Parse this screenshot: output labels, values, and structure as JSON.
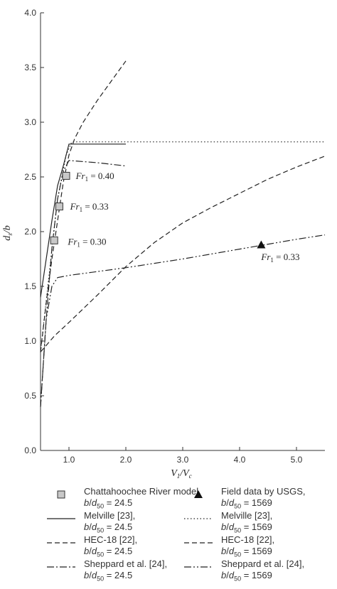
{
  "chart_data": {
    "type": "line",
    "xlabel_main": "V",
    "xlabel_sub1": "1",
    "xlabel_mid": "/V",
    "xlabel_sub2": "c",
    "ylabel_main": "d",
    "ylabel_sub": "s",
    "ylabel_tail": "/b",
    "xlim": [
      0.5,
      5.5
    ],
    "ylim": [
      0.0,
      4.0
    ],
    "xticks": [
      {
        "v": 1.0,
        "label": "1.0"
      },
      {
        "v": 2.0,
        "label": "2.0"
      },
      {
        "v": 3.0,
        "label": "3.0"
      },
      {
        "v": 4.0,
        "label": "4.0"
      },
      {
        "v": 5.0,
        "label": "5.0"
      }
    ],
    "yticks": [
      {
        "v": 0.0,
        "label": "0.0"
      },
      {
        "v": 0.5,
        "label": "0.5"
      },
      {
        "v": 1.0,
        "label": "1.0"
      },
      {
        "v": 1.5,
        "label": "1.5"
      },
      {
        "v": 2.0,
        "label": "2.0"
      },
      {
        "v": 2.5,
        "label": "2.5"
      },
      {
        "v": 3.0,
        "label": "3.0"
      },
      {
        "v": 3.5,
        "label": "3.5"
      },
      {
        "v": 4.0,
        "label": "4.0"
      }
    ],
    "series": [
      {
        "name": "Melville [23], b/d50 = 24.5",
        "style": "solid",
        "points": [
          [
            0.5,
            1.4
          ],
          [
            0.6,
            1.75
          ],
          [
            0.7,
            2.1
          ],
          [
            0.8,
            2.42
          ],
          [
            0.9,
            2.6
          ],
          [
            1.0,
            2.8
          ],
          [
            1.5,
            2.8
          ],
          [
            2.0,
            2.8
          ]
        ]
      },
      {
        "name": "Melville [23], b/d50 = 1569",
        "style": "dotted",
        "points": [
          [
            0.5,
            0.9
          ],
          [
            0.65,
            1.6
          ],
          [
            0.8,
            2.3
          ],
          [
            0.95,
            2.7
          ],
          [
            1.05,
            2.82
          ],
          [
            2.0,
            2.82
          ],
          [
            3.0,
            2.82
          ],
          [
            4.0,
            2.82
          ],
          [
            5.0,
            2.82
          ],
          [
            5.5,
            2.82
          ]
        ]
      },
      {
        "name": "HEC-18 [22], b/d50 = 24.5",
        "style": "dashed",
        "points": [
          [
            0.5,
            0.9
          ],
          [
            0.6,
            1.35
          ],
          [
            0.7,
            1.75
          ],
          [
            0.8,
            2.1
          ],
          [
            0.9,
            2.45
          ],
          [
            1.0,
            2.7
          ],
          [
            1.1,
            2.85
          ],
          [
            1.25,
            3.0
          ],
          [
            1.5,
            3.2
          ],
          [
            1.75,
            3.38
          ],
          [
            2.0,
            3.56
          ]
        ]
      },
      {
        "name": "HEC-18 [22], b/d50 = 1569",
        "style": "dashed",
        "points": [
          [
            0.5,
            0.9
          ],
          [
            0.75,
            1.05
          ],
          [
            1.0,
            1.17
          ],
          [
            1.5,
            1.42
          ],
          [
            2.0,
            1.68
          ],
          [
            2.5,
            1.9
          ],
          [
            3.0,
            2.08
          ],
          [
            3.5,
            2.22
          ],
          [
            4.0,
            2.35
          ],
          [
            4.5,
            2.48
          ],
          [
            5.0,
            2.59
          ],
          [
            5.5,
            2.69
          ]
        ]
      },
      {
        "name": "Sheppard et al. [24], b/d50 = 24.5",
        "style": "dashdot",
        "points": [
          [
            0.5,
            0.4
          ],
          [
            0.6,
            1.2
          ],
          [
            0.7,
            1.85
          ],
          [
            0.8,
            2.3
          ],
          [
            0.9,
            2.55
          ],
          [
            1.0,
            2.65
          ],
          [
            1.5,
            2.63
          ],
          [
            2.0,
            2.6
          ]
        ]
      },
      {
        "name": "Sheppard et al. [24], b/d50 = 1569",
        "style": "dashdotdot",
        "points": [
          [
            0.5,
            0.4
          ],
          [
            0.55,
            0.8
          ],
          [
            0.6,
            1.2
          ],
          [
            0.7,
            1.5
          ],
          [
            0.8,
            1.58
          ],
          [
            1.0,
            1.6
          ],
          [
            2.0,
            1.67
          ],
          [
            3.0,
            1.75
          ],
          [
            4.0,
            1.84
          ],
          [
            5.0,
            1.93
          ],
          [
            5.5,
            1.97
          ]
        ]
      }
    ],
    "markers": [
      {
        "name": "Chattahoochee River model",
        "shape": "square",
        "points": [
          [
            0.74,
            1.92
          ],
          [
            0.83,
            2.23
          ],
          [
            0.95,
            2.51
          ]
        ]
      },
      {
        "name": "Field data by USGS",
        "shape": "triangle",
        "points": [
          [
            4.38,
            1.88
          ]
        ]
      }
    ],
    "annotations": [
      {
        "prefix": "Fr",
        "sub": "1",
        "suffix": " = 0.40",
        "x": 1.12,
        "y": 2.48
      },
      {
        "prefix": "Fr",
        "sub": "1",
        "suffix": " = 0.33",
        "x": 1.02,
        "y": 2.2
      },
      {
        "prefix": "Fr",
        "sub": "1",
        "suffix": " = 0.30",
        "x": 0.98,
        "y": 1.88
      },
      {
        "prefix": "Fr",
        "sub": "1",
        "suffix": " = 0.33",
        "x": 4.38,
        "y": 1.74
      }
    ]
  },
  "legend": {
    "items": [
      {
        "id": "chatt",
        "sym": "square",
        "line1": "Chattahoochee River model,",
        "l2a": "b",
        "l2b": "/",
        "l2c": "d",
        "l2sub": "50",
        "l2d": " = 24.5"
      },
      {
        "id": "usgs",
        "sym": "triangle",
        "line1": "Field data by USGS,",
        "l2a": "b",
        "l2b": "/",
        "l2c": "d",
        "l2sub": "50",
        "l2d": " = 1569"
      },
      {
        "id": "mel1",
        "sym": "solid",
        "line1": "Melville [23],",
        "l2a": "b",
        "l2b": "/",
        "l2c": "d",
        "l2sub": "50",
        "l2d": " = 24.5"
      },
      {
        "id": "mel2",
        "sym": "dotted",
        "line1": "Melville [23],",
        "l2a": "b",
        "l2b": "/",
        "l2c": "d",
        "l2sub": "50",
        "l2d": " = 1569"
      },
      {
        "id": "hec1",
        "sym": "dashed",
        "line1": "HEC-18 [22],",
        "l2a": "b",
        "l2b": "/",
        "l2c": "d",
        "l2sub": "50",
        "l2d": " = 24.5"
      },
      {
        "id": "hec2",
        "sym": "dashed",
        "line1": "HEC-18 [22],",
        "l2a": "b",
        "l2b": "/",
        "l2c": "d",
        "l2sub": "50",
        "l2d": " = 1569"
      },
      {
        "id": "shep1",
        "sym": "dashdot",
        "line1": "Sheppard et al. [24],",
        "l2a": "b",
        "l2b": "/",
        "l2c": "d",
        "l2sub": "50",
        "l2d": " = 24.5"
      },
      {
        "id": "shep2",
        "sym": "dashdotdot",
        "line1": "Sheppard et al. [24],",
        "l2a": "b",
        "l2b": "/",
        "l2c": "d",
        "l2sub": "50",
        "l2d": " = 1569"
      }
    ]
  }
}
